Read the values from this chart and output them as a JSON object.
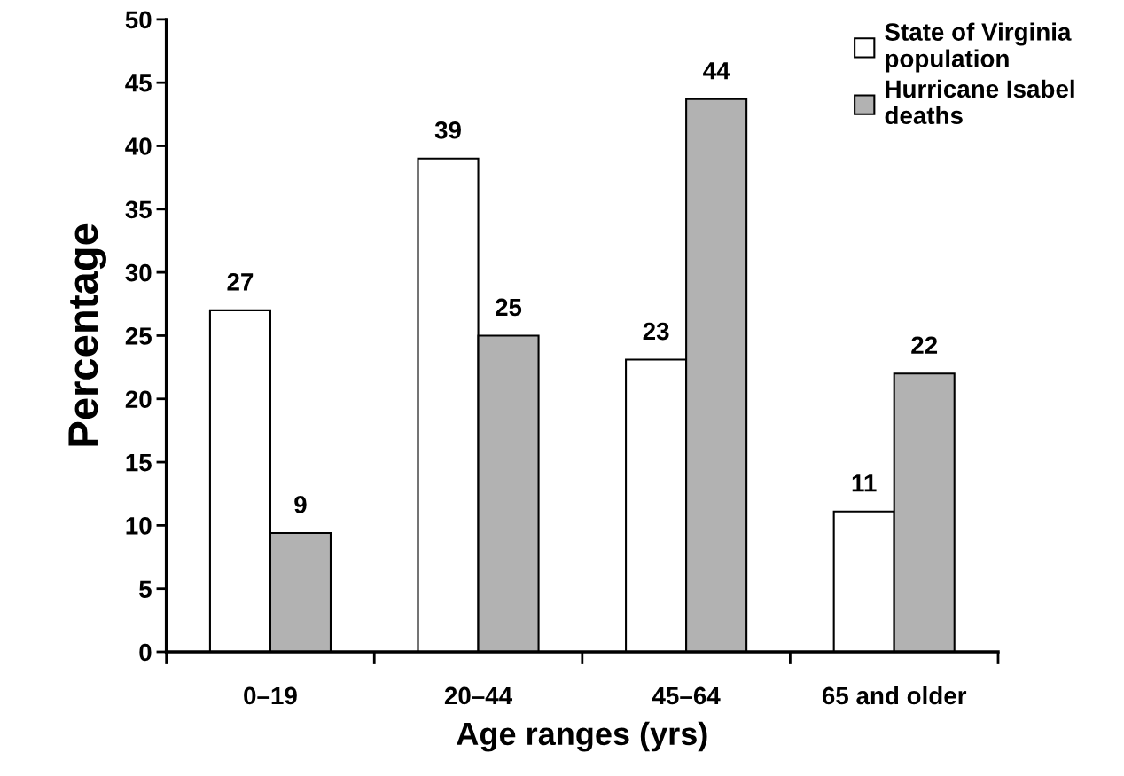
{
  "chart_data": {
    "type": "bar",
    "xlabel": "Age ranges (yrs)",
    "ylabel": "Percentage",
    "categories": [
      "0–19",
      "20–44",
      "45–64",
      "65 and older"
    ],
    "series": [
      {
        "name": "State of Virginia\npopulation",
        "color": "#ffffff",
        "values": [
          27,
          39,
          23.1,
          11.1
        ],
        "value_labels": [
          "27",
          "39",
          "23",
          "11"
        ]
      },
      {
        "name": "Hurricane Isabel\ndeaths",
        "color": "#b2b2b2",
        "values": [
          9.4,
          25,
          43.7,
          22
        ],
        "value_labels": [
          "9",
          "25",
          "44",
          "22"
        ]
      }
    ],
    "ylim": [
      0,
      50
    ],
    "yticks": [
      0,
      5,
      10,
      15,
      20,
      25,
      30,
      35,
      40,
      45,
      50
    ],
    "grid": false,
    "legend": "top right"
  }
}
